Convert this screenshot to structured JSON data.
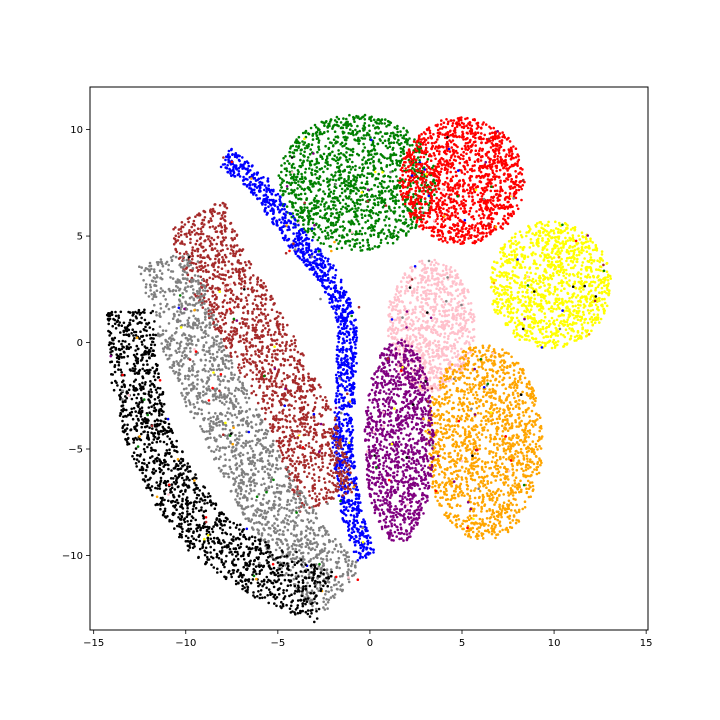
{
  "chart_data": {
    "type": "scatter",
    "title": "",
    "xlabel": "",
    "ylabel": "",
    "xlim": [
      -15.2,
      15.1
    ],
    "ylim": [
      -13.5,
      12.0
    ],
    "grid": false,
    "legend": "none",
    "x_ticks": [
      {
        "value": -15,
        "label": "−15"
      },
      {
        "value": -10,
        "label": "−10"
      },
      {
        "value": -5,
        "label": "−5"
      },
      {
        "value": 0,
        "label": "0"
      },
      {
        "value": 5,
        "label": "5"
      },
      {
        "value": 10,
        "label": "10"
      },
      {
        "value": 15,
        "label": "15"
      }
    ],
    "y_ticks": [
      {
        "value": -10,
        "label": "−10"
      },
      {
        "value": -5,
        "label": "−5"
      },
      {
        "value": 0,
        "label": "0"
      },
      {
        "value": 5,
        "label": "5"
      },
      {
        "value": 10,
        "label": "10"
      }
    ],
    "clusters": [
      {
        "color": "#008000",
        "shape": "ellipse",
        "center": [
          -0.7,
          7.5
        ],
        "radii": [
          4.3,
          3.2
        ],
        "points": 1400
      },
      {
        "color": "#ff0000",
        "shape": "ellipse",
        "center": [
          5.0,
          7.6
        ],
        "radii": [
          3.4,
          3.0
        ],
        "points": 1400
      },
      {
        "color": "#ffff00",
        "shape": "ellipse",
        "center": [
          9.8,
          2.7
        ],
        "radii": [
          3.3,
          3.0
        ],
        "points": 1200
      },
      {
        "color": "#ffc0cb",
        "shape": "ellipse",
        "center": [
          3.3,
          0.8
        ],
        "radii": [
          2.4,
          3.1
        ],
        "points": 900
      },
      {
        "color": "#ffa500",
        "shape": "ellipse",
        "center": [
          6.2,
          -4.7
        ],
        "radii": [
          3.2,
          4.6
        ],
        "points": 1500
      },
      {
        "color": "#800080",
        "shape": "ellipse",
        "center": [
          1.6,
          -4.6
        ],
        "radii": [
          1.9,
          4.8
        ],
        "points": 1200
      },
      {
        "color": "#0000ff",
        "shape": "path",
        "path": [
          [
            -7.9,
            8.7
          ],
          [
            -6.0,
            7.4
          ],
          [
            -4.1,
            5.0
          ],
          [
            -2.3,
            3.2
          ],
          [
            -1.2,
            1.1
          ],
          [
            -1.3,
            -2.0
          ],
          [
            -1.5,
            -5.0
          ],
          [
            -1.0,
            -8.0
          ],
          [
            -0.2,
            -10.1
          ]
        ],
        "width": 0.55,
        "points": 1300
      },
      {
        "color": "#a52a2a",
        "shape": "path",
        "path": [
          [
            -9.5,
            6.0
          ],
          [
            -8.3,
            3.5
          ],
          [
            -6.6,
            1.0
          ],
          [
            -5.0,
            -1.5
          ],
          [
            -3.5,
            -4.0
          ],
          [
            -2.3,
            -7.5
          ]
        ],
        "width": 1.7,
        "points": 1500
      },
      {
        "color": "#808080",
        "shape": "path",
        "path": [
          [
            -11.0,
            4.0
          ],
          [
            -10.3,
            1.5
          ],
          [
            -9.0,
            -1.5
          ],
          [
            -7.3,
            -4.3
          ],
          [
            -5.5,
            -7.3
          ],
          [
            -3.4,
            -10.0
          ],
          [
            -1.5,
            -11.7
          ]
        ],
        "width": 1.6,
        "points": 1600
      },
      {
        "color": "#000000",
        "shape": "path",
        "path": [
          [
            -13.0,
            1.5
          ],
          [
            -12.8,
            -1.5
          ],
          [
            -12.0,
            -4.5
          ],
          [
            -10.8,
            -6.6
          ],
          [
            -8.8,
            -9.0
          ],
          [
            -6.0,
            -10.7
          ],
          [
            -2.5,
            -12.0
          ]
        ],
        "width": 1.3,
        "points": 1500
      }
    ]
  }
}
